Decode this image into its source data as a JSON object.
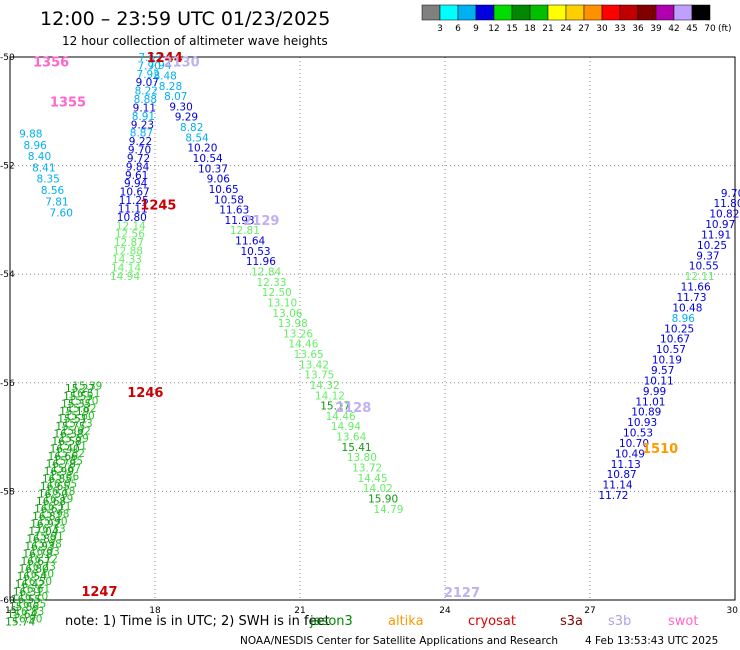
{
  "header": {
    "title": "12:00 – 23:59 UTC 01/23/2025",
    "subtitle": "12 hour collection of altimeter wave heights"
  },
  "colorbar": {
    "labels": [
      "3",
      "6",
      "9",
      "12",
      "15",
      "18",
      "21",
      "24",
      "27",
      "30",
      "33",
      "36",
      "39",
      "42",
      "45",
      "70"
    ],
    "unit": "(ft)",
    "colors": [
      "#808080",
      "#00ffff",
      "#00b0f0",
      "#0000e0",
      "#00dd00",
      "#008800",
      "#00c000",
      "#ffff00",
      "#ffd000",
      "#ff9000",
      "#ff0000",
      "#c00000",
      "#800000",
      "#b000b0",
      "#c0a0ff",
      "#000000"
    ]
  },
  "axes": {
    "x_ticks": [
      "15",
      "18",
      "21",
      "24",
      "27",
      "30"
    ],
    "y_ticks": [
      "-50",
      "-52",
      "-54",
      "-56",
      "-58",
      "-60"
    ]
  },
  "track_labels": [
    {
      "text": "1356",
      "color": "#ff66cc",
      "x": 15.85,
      "y": -50.08
    },
    {
      "text": "1355",
      "color": "#ff66cc",
      "x": 16.2,
      "y": -50.82
    },
    {
      "text": "1244",
      "color": "#cc0000",
      "x": 18.2,
      "y": -50.0
    },
    {
      "text": "2130",
      "color": "#c0b0f0",
      "x": 18.55,
      "y": -50.08
    },
    {
      "text": "1245",
      "color": "#cc0000",
      "x": 18.07,
      "y": -52.72
    },
    {
      "text": "2129",
      "color": "#c0b0f0",
      "x": 20.2,
      "y": -53.0
    },
    {
      "text": "1246",
      "color": "#cc0000",
      "x": 17.8,
      "y": -56.17
    },
    {
      "text": "2128",
      "color": "#c0b0f0",
      "x": 22.1,
      "y": -56.45
    },
    {
      "text": "1510",
      "color": "#ff9900",
      "x": 28.45,
      "y": -57.2
    },
    {
      "text": "2127",
      "color": "#c0b0f0",
      "x": 24.35,
      "y": -59.85
    },
    {
      "text": "1247",
      "color": "#cc0000",
      "x": 16.85,
      "y": -59.83
    }
  ],
  "point_groups": [
    {
      "name": "track-1355-1356",
      "x0": 15.43,
      "y0": -51.41,
      "dx": 0.09,
      "dy": 0.208,
      "color": "#00b0f0",
      "values": [
        "9.88",
        "8.96",
        "8.40",
        "8.41",
        "8.35",
        "8.56",
        "7.81",
        "7.60"
      ]
    },
    {
      "name": "track-1244-1247-upper",
      "x0": 17.9,
      "y0": -50.0,
      "dx": -0.02,
      "dy": 0.155,
      "values": [
        {
          "v": "7.63",
          "c": "#00b0f0"
        },
        {
          "v": "7.90",
          "c": "#00b0f0"
        },
        {
          "v": "7.92",
          "c": "#00b0f0"
        },
        {
          "v": "9.07",
          "c": "#0000dd"
        },
        {
          "v": "8.22",
          "c": "#00b0f0"
        },
        {
          "v": "8.88",
          "c": "#00b0f0"
        },
        {
          "v": "9.11",
          "c": "#0000dd"
        },
        {
          "v": "8.91",
          "c": "#00b0f0"
        },
        {
          "v": "9.23",
          "c": "#0000dd"
        },
        {
          "v": "8.87",
          "c": "#00b0f0"
        },
        {
          "v": "9.22",
          "c": "#0000dd"
        },
        {
          "v": "9.70",
          "c": "#0000dd"
        },
        {
          "v": "9.72",
          "c": "#0000dd"
        },
        {
          "v": "9.84",
          "c": "#0000dd"
        },
        {
          "v": "9.61",
          "c": "#0000dd"
        },
        {
          "v": "9.94",
          "c": "#0000dd"
        },
        {
          "v": "10.67",
          "c": "#0000dd"
        },
        {
          "v": "11.25",
          "c": "#0000dd"
        },
        {
          "v": "11.11",
          "c": "#0000dd"
        },
        {
          "v": "10.80",
          "c": "#0000dd"
        },
        {
          "v": "12.14",
          "c": "#66ee66"
        },
        {
          "v": "12.56",
          "c": "#66ee66"
        },
        {
          "v": "12.87",
          "c": "#66ee66"
        },
        {
          "v": "12.88",
          "c": "#66ee66"
        },
        {
          "v": "14.33",
          "c": "#66ee66"
        },
        {
          "v": "14.14",
          "c": "#66ee66"
        },
        {
          "v": "14.94",
          "c": "#66ee66"
        }
      ]
    },
    {
      "name": "track-1246-lower-b",
      "x0": 16.6,
      "y0": -56.05,
      "dx": -0.04,
      "dy": 0.1385,
      "color": "#22bb22",
      "values": [
        "15.39",
        "16.51",
        "15.70",
        "15.82",
        "15.60",
        "15.73",
        "15.92",
        "15.59",
        "15.71",
        "15.82",
        "15.85",
        "15.67",
        "15.86",
        "16.05",
        "16.18",
        "16.19",
        "16.11",
        "15.98",
        "15.90",
        "16.33",
        "15.91",
        "15.98",
        "16.03",
        "16.12",
        "16.23",
        "16.40",
        "16.50",
        "16.61",
        "16.70",
        "16.55",
        "16.83",
        "16.90"
      ]
    },
    {
      "name": "track-1246-lower-a",
      "x0": 16.45,
      "y0": -56.1,
      "dx": -0.04,
      "dy": 0.1385,
      "color": "#119911",
      "values": [
        "15.27",
        "15.55",
        "15.35",
        "15.19",
        "15.51",
        "15.75",
        "16.38",
        "16.58",
        "16.40",
        "16.66",
        "16.78",
        "16.99",
        "16.85",
        "16.65",
        "16.50",
        "16.68",
        "16.62",
        "16.81",
        "16.92",
        "17.04",
        "16.89",
        "16.93",
        "16.78",
        "16.67",
        "16.80",
        "16.54",
        "16.42",
        "16.31",
        "16.55",
        "15.86",
        "15.64",
        "15.74"
      ]
    },
    {
      "name": "track-2130-2127-a",
      "x0": 18.1,
      "y0": -50.15,
      "dx": 0.11,
      "dy": 0.19,
      "values": [
        {
          "v": "7.94",
          "c": "#00b0f0"
        },
        {
          "v": "8.48",
          "c": "#00b0f0"
        },
        {
          "v": "8.28",
          "c": "#00b0f0"
        },
        {
          "v": "8.07",
          "c": "#00b0f0"
        },
        {
          "v": "9.30",
          "c": "#0000dd"
        },
        {
          "v": "9.29",
          "c": "#0000dd"
        },
        {
          "v": "8.82",
          "c": "#00b0f0"
        },
        {
          "v": "8.54",
          "c": "#00b0f0"
        },
        {
          "v": "10.20",
          "c": "#0000dd"
        },
        {
          "v": "10.54",
          "c": "#0000dd"
        },
        {
          "v": "10.37",
          "c": "#0000dd"
        },
        {
          "v": "9.06",
          "c": "#0000dd"
        },
        {
          "v": "10.65",
          "c": "#0000dd"
        },
        {
          "v": "10.58",
          "c": "#0000dd"
        },
        {
          "v": "11.63",
          "c": "#0000dd"
        },
        {
          "v": "11.93",
          "c": "#0000dd"
        },
        {
          "v": "12.81",
          "c": "#66ee66"
        },
        {
          "v": "11.64",
          "c": "#0000dd"
        },
        {
          "v": "10.53",
          "c": "#0000dd"
        },
        {
          "v": "11.96",
          "c": "#0000dd"
        },
        {
          "v": "12.84",
          "c": "#66ee66"
        },
        {
          "v": "12.33",
          "c": "#66ee66"
        },
        {
          "v": "12.50",
          "c": "#66ee66"
        },
        {
          "v": "13.10",
          "c": "#66ee66"
        },
        {
          "v": "13.06",
          "c": "#66ee66"
        },
        {
          "v": "13.98",
          "c": "#66ee66"
        },
        {
          "v": "13.26",
          "c": "#66ee66"
        },
        {
          "v": "14.46",
          "c": "#66ee66"
        },
        {
          "v": "13.65",
          "c": "#66ee66"
        },
        {
          "v": "13.42",
          "c": "#66ee66"
        },
        {
          "v": "13.75",
          "c": "#66ee66"
        },
        {
          "v": "14.32",
          "c": "#66ee66"
        },
        {
          "v": "14.12",
          "c": "#66ee66"
        },
        {
          "v": "15.17",
          "c": "#119911"
        },
        {
          "v": "14.46",
          "c": "#66ee66"
        },
        {
          "v": "14.94",
          "c": "#66ee66"
        },
        {
          "v": "13.64",
          "c": "#66ee66"
        },
        {
          "v": "15.41",
          "c": "#119911"
        },
        {
          "v": "13.80",
          "c": "#66ee66"
        },
        {
          "v": "13.72",
          "c": "#66ee66"
        },
        {
          "v": "14.45",
          "c": "#66ee66"
        },
        {
          "v": "14.02",
          "c": "#66ee66"
        },
        {
          "v": "15.90",
          "c": "#119911"
        },
        {
          "v": "14.79",
          "c": "#66ee66"
        }
      ]
    },
    {
      "name": "track-1510",
      "x0": 29.95,
      "y0": -52.5,
      "dx": -0.085,
      "dy": 0.192,
      "values": [
        {
          "v": "9.70",
          "c": "#0000dd"
        },
        {
          "v": "11.80",
          "c": "#0000dd"
        },
        {
          "v": "10.82",
          "c": "#0000dd"
        },
        {
          "v": "10.97",
          "c": "#0000dd"
        },
        {
          "v": "11.91",
          "c": "#0000dd"
        },
        {
          "v": "10.25",
          "c": "#0000dd"
        },
        {
          "v": "9.37",
          "c": "#0000dd"
        },
        {
          "v": "10.55",
          "c": "#0000dd"
        },
        {
          "v": "12.11",
          "c": "#66ee66"
        },
        {
          "v": "11.66",
          "c": "#0000dd"
        },
        {
          "v": "11.73",
          "c": "#0000dd"
        },
        {
          "v": "10.48",
          "c": "#0000dd"
        },
        {
          "v": "8.96",
          "c": "#00b0f0"
        },
        {
          "v": "10.25",
          "c": "#0000dd"
        },
        {
          "v": "10.67",
          "c": "#0000dd"
        },
        {
          "v": "10.57",
          "c": "#0000dd"
        },
        {
          "v": "10.19",
          "c": "#0000dd"
        },
        {
          "v": "9.57",
          "c": "#0000dd"
        },
        {
          "v": "10.11",
          "c": "#0000dd"
        },
        {
          "v": "9.99",
          "c": "#0000dd"
        },
        {
          "v": "11.01",
          "c": "#0000dd"
        },
        {
          "v": "10.89",
          "c": "#0000dd"
        },
        {
          "v": "10.93",
          "c": "#0000dd"
        },
        {
          "v": "10.53",
          "c": "#0000dd"
        },
        {
          "v": "10.70",
          "c": "#0000dd"
        },
        {
          "v": "10.49",
          "c": "#0000dd"
        },
        {
          "v": "11.13",
          "c": "#0000dd"
        },
        {
          "v": "10.87",
          "c": "#0000dd"
        },
        {
          "v": "11.14",
          "c": "#0000dd"
        },
        {
          "v": "11.72",
          "c": "#0000dd"
        }
      ]
    }
  ],
  "footer": {
    "note": "note:  1) Time is in UTC; 2) SWH is in feet",
    "missions": [
      {
        "text": "jason3",
        "color": "#008800"
      },
      {
        "text": "altika",
        "color": "#ff9900"
      },
      {
        "text": "cryosat",
        "color": "#dd0000"
      },
      {
        "text": "s3a",
        "color": "#880000"
      },
      {
        "text": "s3b",
        "color": "#b0a0e8"
      },
      {
        "text": "swot",
        "color": "#ff66cc"
      }
    ],
    "credit": "NOAA/NESDIS Center for Satellite Applications and Research",
    "timestamp": "4 Feb 13:53:43 UTC 2025"
  }
}
